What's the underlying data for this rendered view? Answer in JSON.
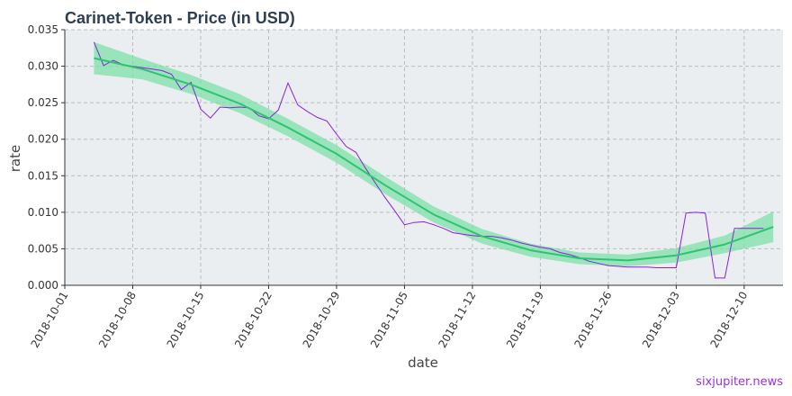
{
  "chart_data": {
    "type": "line",
    "title": "Carinet-Token - Price (in USD)",
    "xlabel": "date",
    "ylabel": "rate",
    "watermark": "sixjupiter.news",
    "xlim": [
      "2018-10-01",
      "2018-12-14"
    ],
    "ylim": [
      0,
      0.035
    ],
    "x_ticks": [
      "2018-10-01",
      "2018-10-08",
      "2018-10-15",
      "2018-10-22",
      "2018-10-29",
      "2018-11-05",
      "2018-11-12",
      "2018-11-19",
      "2018-11-26",
      "2018-12-03",
      "2018-12-10"
    ],
    "y_ticks": [
      "0.000",
      "0.005",
      "0.010",
      "0.015",
      "0.020",
      "0.025",
      "0.030",
      "0.035"
    ],
    "grid": true,
    "colors": {
      "price": "#8b1fe0",
      "trend": "#2cc46e",
      "band": "#7fe0aa",
      "panel": "#ebeef0",
      "grid": "#b8bcbf",
      "title": "#2e3f51"
    },
    "series": [
      {
        "role": "price",
        "x": [
          "2018-10-04",
          "2018-10-05",
          "2018-10-06",
          "2018-10-07",
          "2018-10-08",
          "2018-10-09",
          "2018-10-10",
          "2018-10-11",
          "2018-10-12",
          "2018-10-13",
          "2018-10-14",
          "2018-10-15",
          "2018-10-16",
          "2018-10-17",
          "2018-10-18",
          "2018-10-19",
          "2018-10-20",
          "2018-10-21",
          "2018-10-22",
          "2018-10-23",
          "2018-10-24",
          "2018-10-25",
          "2018-10-26",
          "2018-10-27",
          "2018-10-28",
          "2018-10-29",
          "2018-10-30",
          "2018-10-31",
          "2018-11-01",
          "2018-11-02",
          "2018-11-03",
          "2018-11-04",
          "2018-11-05",
          "2018-11-06",
          "2018-11-07",
          "2018-11-08",
          "2018-11-09",
          "2018-11-10",
          "2018-11-11",
          "2018-11-12",
          "2018-11-13",
          "2018-11-14",
          "2018-11-15",
          "2018-11-16",
          "2018-11-17",
          "2018-11-18",
          "2018-11-19",
          "2018-11-20",
          "2018-11-21",
          "2018-11-22",
          "2018-11-23",
          "2018-11-24",
          "2018-11-25",
          "2018-11-26",
          "2018-11-27",
          "2018-11-28",
          "2018-11-29",
          "2018-11-30",
          "2018-12-01",
          "2018-12-02",
          "2018-12-03",
          "2018-12-04",
          "2018-12-05",
          "2018-12-06",
          "2018-12-07",
          "2018-12-08",
          "2018-12-09",
          "2018-12-10",
          "2018-12-11",
          "2018-12-12"
        ],
        "y": [
          0.0333,
          0.0301,
          0.0308,
          0.0302,
          0.03,
          0.0298,
          0.0296,
          0.0294,
          0.0289,
          0.0268,
          0.0278,
          0.0241,
          0.0229,
          0.0244,
          0.0243,
          0.0244,
          0.0243,
          0.0232,
          0.0228,
          0.024,
          0.0277,
          0.0247,
          0.0238,
          0.023,
          0.0225,
          0.0207,
          0.019,
          0.0182,
          0.016,
          0.014,
          0.012,
          0.0102,
          0.0083,
          0.0086,
          0.0087,
          0.0083,
          0.0078,
          0.0072,
          0.007,
          0.0068,
          0.0067,
          0.0067,
          0.0065,
          0.0062,
          0.0058,
          0.0055,
          0.0052,
          0.005,
          0.0045,
          0.0042,
          0.0038,
          0.0033,
          0.003,
          0.0027,
          0.0026,
          0.0025,
          0.0025,
          0.0025,
          0.0024,
          0.0024,
          0.0024,
          0.0099,
          0.01,
          0.0099,
          0.001,
          0.001,
          0.0078,
          0.0078,
          0.0078,
          0.0078
        ]
      },
      {
        "role": "trend",
        "x": [
          "2018-10-04",
          "2018-10-09",
          "2018-10-14",
          "2018-10-19",
          "2018-10-24",
          "2018-10-29",
          "2018-11-03",
          "2018-11-08",
          "2018-11-13",
          "2018-11-18",
          "2018-11-23",
          "2018-11-28",
          "2018-12-03",
          "2018-12-08",
          "2018-12-13"
        ],
        "y": [
          0.0311,
          0.0296,
          0.0275,
          0.0249,
          0.0216,
          0.018,
          0.0137,
          0.0097,
          0.0067,
          0.0048,
          0.0037,
          0.0034,
          0.0041,
          0.0056,
          0.008
        ],
        "lower": [
          0.0289,
          0.0282,
          0.0262,
          0.0236,
          0.0204,
          0.0168,
          0.0125,
          0.0086,
          0.0057,
          0.0039,
          0.0029,
          0.0026,
          0.0031,
          0.0044,
          0.0059
        ],
        "upper": [
          0.0333,
          0.031,
          0.0288,
          0.0262,
          0.0228,
          0.0192,
          0.0149,
          0.0108,
          0.0077,
          0.0057,
          0.0045,
          0.0042,
          0.0051,
          0.0068,
          0.0101
        ]
      }
    ]
  }
}
